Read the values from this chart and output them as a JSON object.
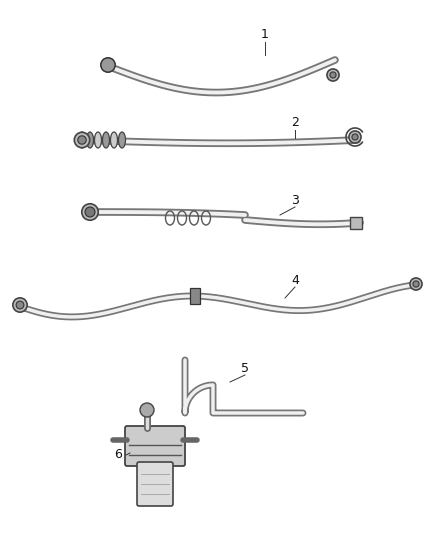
{
  "background_color": "#ffffff",
  "line_color": "#555555",
  "label_color": "#111111",
  "fig_width": 4.38,
  "fig_height": 5.33,
  "dpi": 100,
  "label_fontsize": 9,
  "leader_lw": 0.7,
  "tube_outer_lw": 5,
  "tube_inner_lw": 2.5,
  "tube_outer_color": "#666666",
  "tube_inner_color": "#f5f5f5",
  "connector_face": "#cccccc",
  "connector_edge": "#444444"
}
